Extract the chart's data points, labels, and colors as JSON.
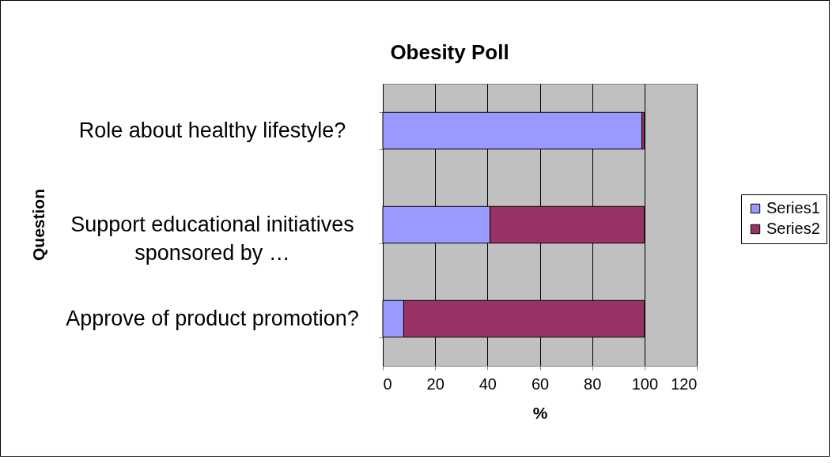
{
  "chart_data": {
    "type": "bar",
    "orientation": "horizontal",
    "stacked": true,
    "title": "Obesity Poll",
    "xlabel": "%",
    "ylabel": "Question",
    "categories": [
      "Role about healthy lifestyle?",
      "Support educational initiatives\nsponsored by …",
      "Approve of product promotion?"
    ],
    "series": [
      {
        "name": "Series1",
        "color": "#9999ff",
        "values": [
          99,
          41,
          8
        ]
      },
      {
        "name": "Series2",
        "color": "#993366",
        "values": [
          1,
          59,
          92
        ]
      }
    ],
    "xlim": [
      0,
      120
    ],
    "xticks": [
      0,
      20,
      40,
      60,
      80,
      100,
      120
    ],
    "grid": "x",
    "legend": "right"
  }
}
